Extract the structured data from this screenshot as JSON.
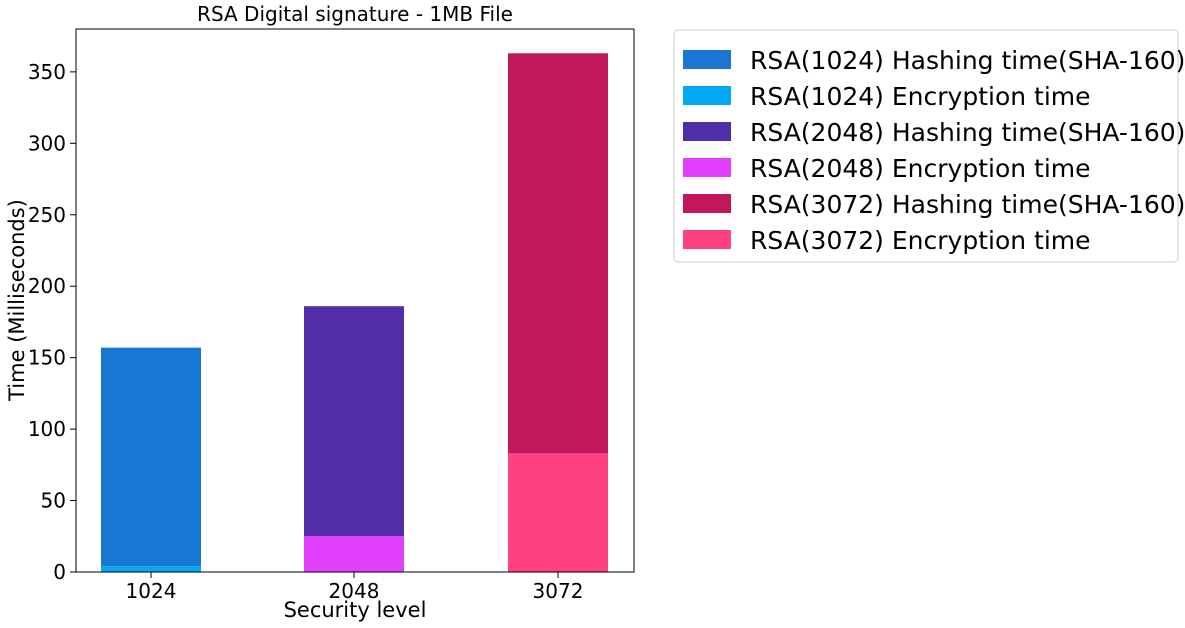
{
  "chart_data": {
    "type": "bar",
    "stacked": true,
    "title": "RSA Digital signature - 1MB File",
    "xlabel": "Security level",
    "ylabel": "Time (Milliseconds)",
    "categories": [
      "1024",
      "2048",
      "3072"
    ],
    "ylim": [
      0,
      380
    ],
    "yticks": [
      0,
      50,
      100,
      150,
      200,
      250,
      300,
      350
    ],
    "grid": false,
    "legend_position": "outside-right-top",
    "series": [
      {
        "name": "RSA(1024) Hashing time(SHA-160)",
        "color": "#1976d2",
        "category": "1024",
        "base": 4,
        "value": 153
      },
      {
        "name": "RSA(1024) Encryption time",
        "color": "#03a9f4",
        "category": "1024",
        "base": 0,
        "value": 4
      },
      {
        "name": "RSA(2048) Hashing time(SHA-160)",
        "color": "#512da8",
        "category": "2048",
        "base": 25,
        "value": 161
      },
      {
        "name": "RSA(2048) Encryption time",
        "color": "#e040fb",
        "category": "2048",
        "base": 0,
        "value": 25
      },
      {
        "name": "RSA(3072) Hashing time(SHA-160)",
        "color": "#c2185b",
        "category": "3072",
        "base": 83,
        "value": 280
      },
      {
        "name": "RSA(3072) Encryption time",
        "color": "#ff4081",
        "category": "3072",
        "base": 0,
        "value": 83
      }
    ]
  }
}
